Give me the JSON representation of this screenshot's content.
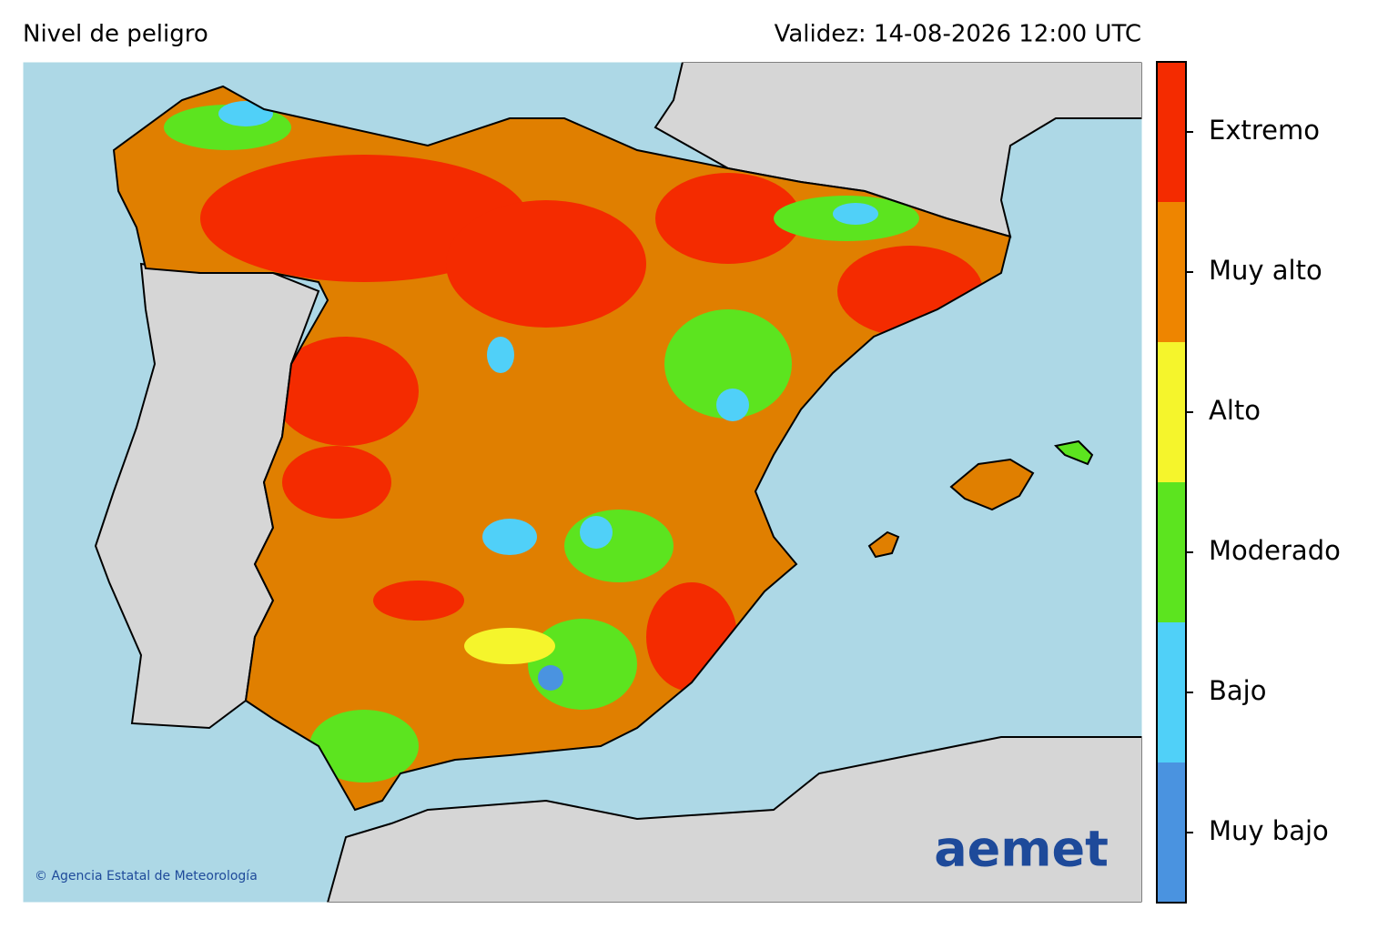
{
  "header": {
    "title": "Nivel de peligro",
    "validity": "Validez: 14-08-2026 12:00 UTC"
  },
  "legend": {
    "levels": [
      {
        "label": "Extremo",
        "color": "#f42b00"
      },
      {
        "label": "Muy alto",
        "color": "#ee8500"
      },
      {
        "label": "Alto",
        "color": "#f5f52c"
      },
      {
        "label": "Moderado",
        "color": "#5ce41f"
      },
      {
        "label": "Bajo",
        "color": "#50d0f8"
      },
      {
        "label": "Muy bajo",
        "color": "#4a93e0"
      }
    ]
  },
  "credit": "© Agencia Estatal de Meteorología",
  "logo": "aemet"
}
